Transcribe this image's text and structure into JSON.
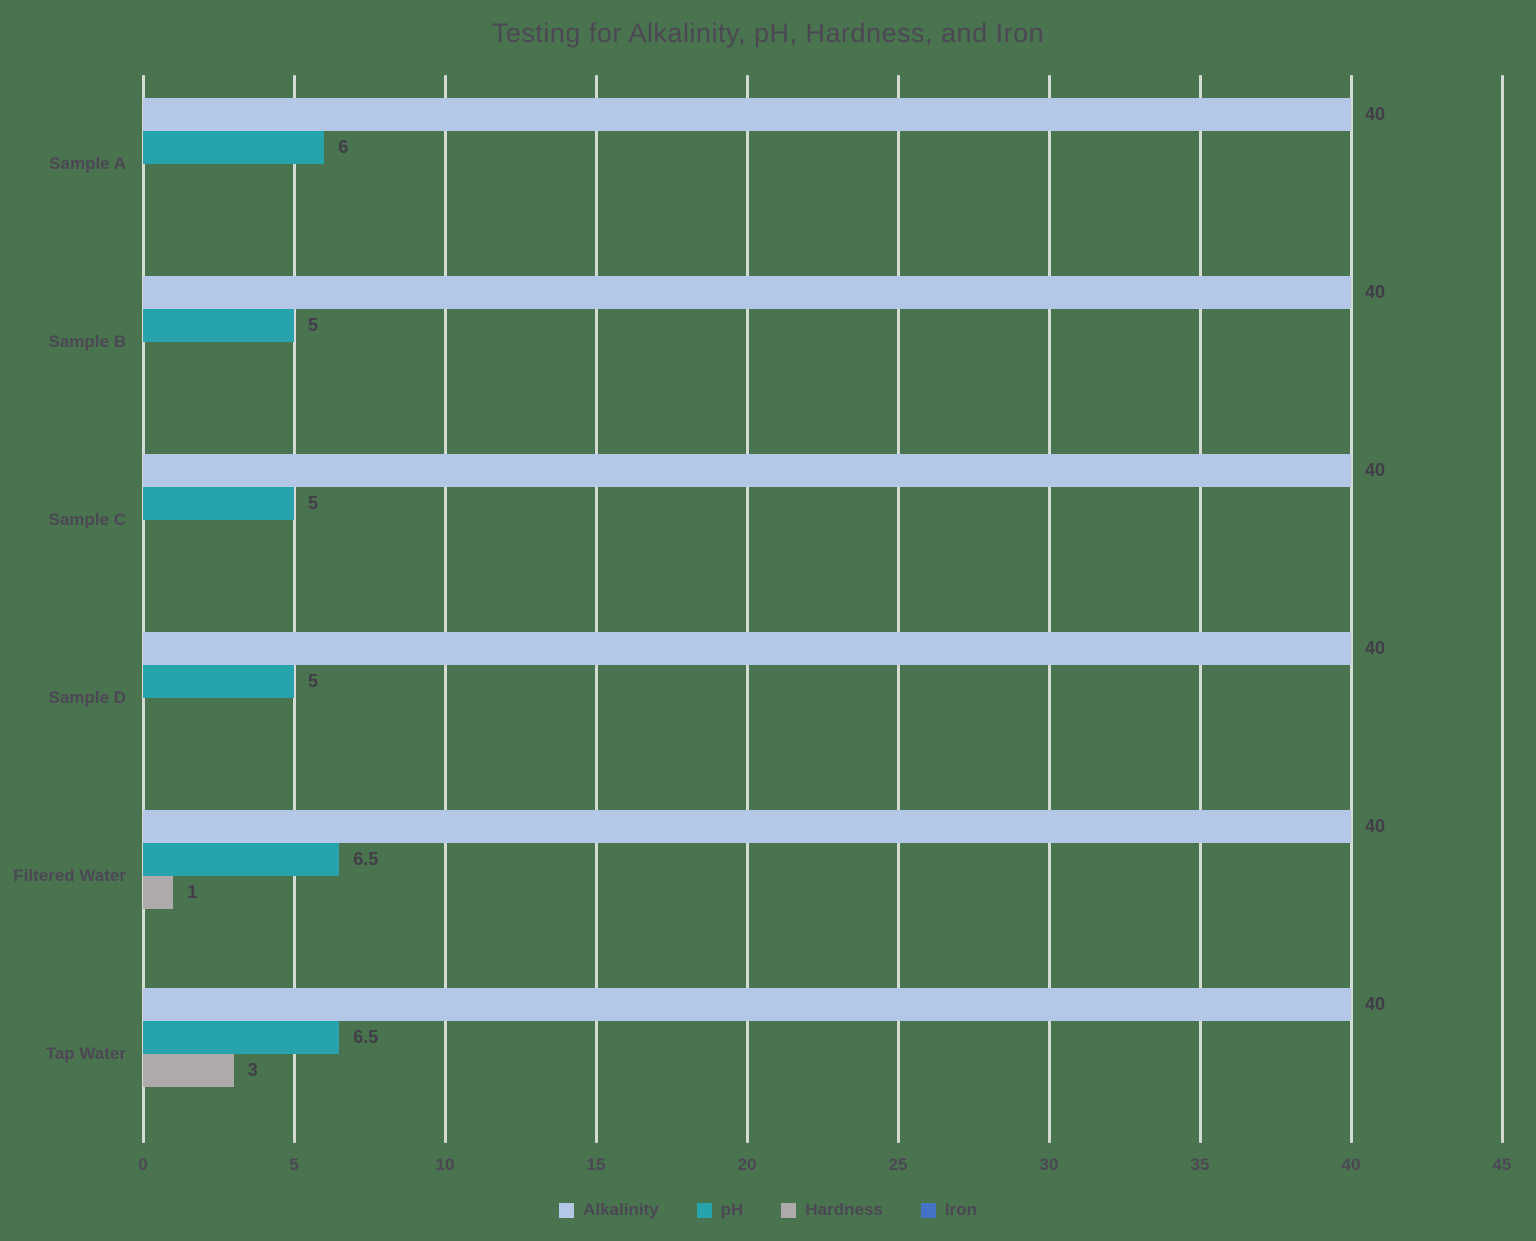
{
  "chart_data": {
    "type": "bar",
    "orientation": "horizontal",
    "title": "Testing for Alkalinity, pH, Hardness, and Iron",
    "categories": [
      "Sample A",
      "Sample B",
      "Sample C",
      "Sample D",
      "Filtered Water",
      "Tap Water"
    ],
    "series": [
      {
        "name": "Alkalinity",
        "color": "#B4C7E7",
        "values": [
          40,
          40,
          40,
          40,
          40,
          40
        ]
      },
      {
        "name": "pH",
        "color": "#27A3AC",
        "values": [
          6,
          5,
          5,
          5,
          6.5,
          6.5
        ]
      },
      {
        "name": "Hardness",
        "color": "#AEAAAA",
        "values": [
          0,
          0,
          0,
          0,
          1,
          3
        ]
      },
      {
        "name": "Iron",
        "color": "#4472C4",
        "values": [
          0,
          0,
          0,
          0,
          0,
          0
        ]
      }
    ],
    "x_axis": {
      "min": 0,
      "max": 45,
      "step": 5,
      "tick_labels": [
        "0",
        "5",
        "10",
        "15",
        "20",
        "25",
        "30",
        "35",
        "40",
        "45"
      ]
    },
    "data_labels": {
      "show_for_nonzero_values": true
    },
    "legend": {
      "position": "bottom",
      "entries": [
        "Alkalinity",
        "pH",
        "Hardness",
        "Iron"
      ]
    },
    "grid": true
  },
  "colors": {
    "background": "#4A7350",
    "gridline": "#D6DAD4",
    "text": "#4C4853",
    "value_label": "#413E47"
  }
}
